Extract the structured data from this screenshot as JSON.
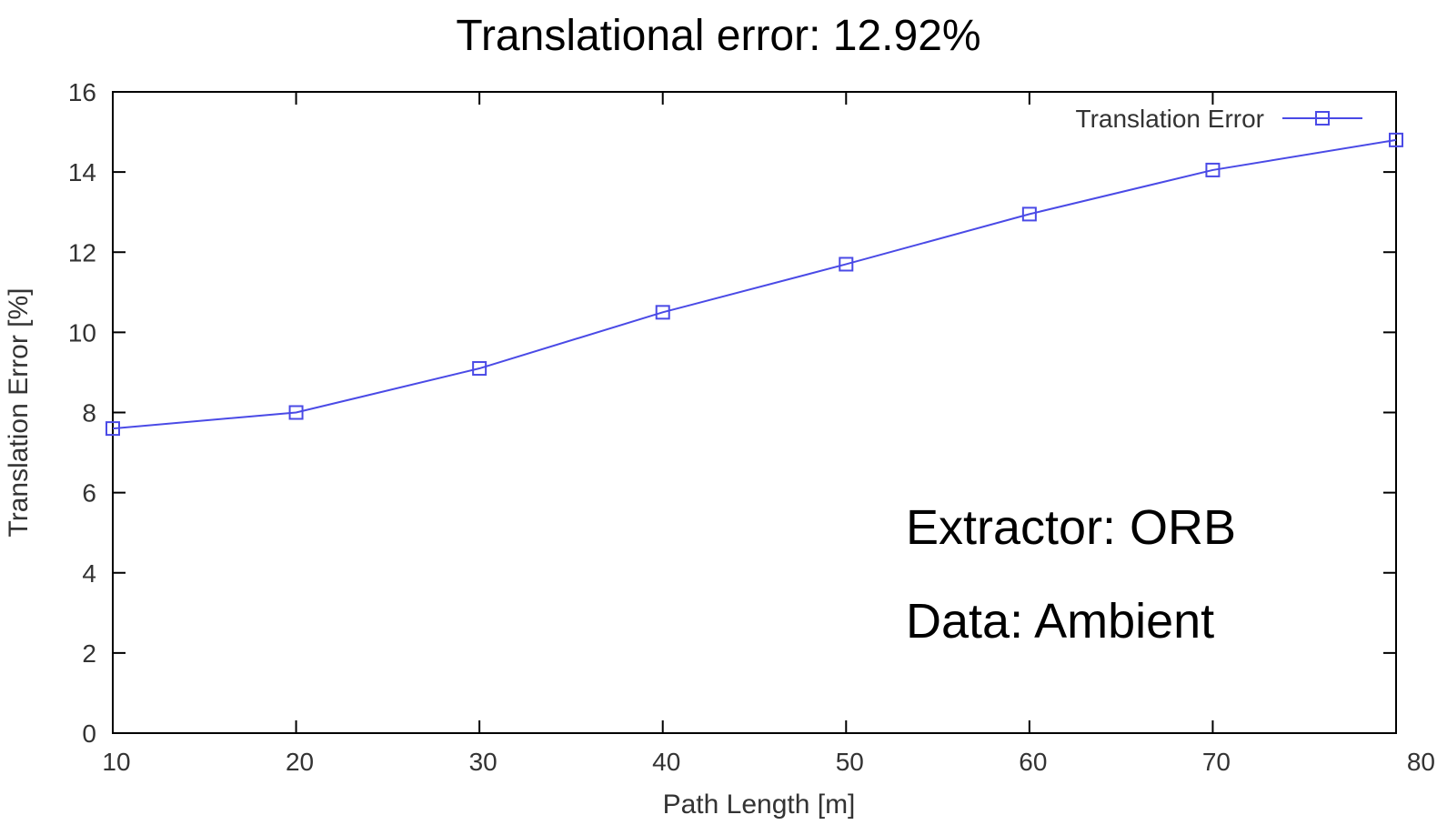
{
  "chart_data": {
    "type": "line",
    "title": "Translational error: 12.92%",
    "xlabel": "Path Length [m]",
    "ylabel": "Translation Error [%]",
    "xlim": [
      10,
      80
    ],
    "ylim": [
      0,
      16
    ],
    "x_ticks": [
      "10",
      "20",
      "30",
      "40",
      "50",
      "60",
      "70",
      "80"
    ],
    "y_ticks": [
      "0",
      "2",
      "4",
      "6",
      "8",
      "10",
      "12",
      "14",
      "16"
    ],
    "grid": false,
    "legend_position": "top-right",
    "series": [
      {
        "name": "Translation Error",
        "color": "#4a4ae6",
        "marker": "open-square",
        "x": [
          10,
          20,
          30,
          40,
          50,
          60,
          70,
          80
        ],
        "y": [
          7.6,
          8.0,
          9.1,
          10.5,
          11.7,
          12.95,
          14.05,
          14.8
        ]
      }
    ],
    "annotations": [
      "Extractor: ORB",
      "Data: Ambient"
    ]
  }
}
